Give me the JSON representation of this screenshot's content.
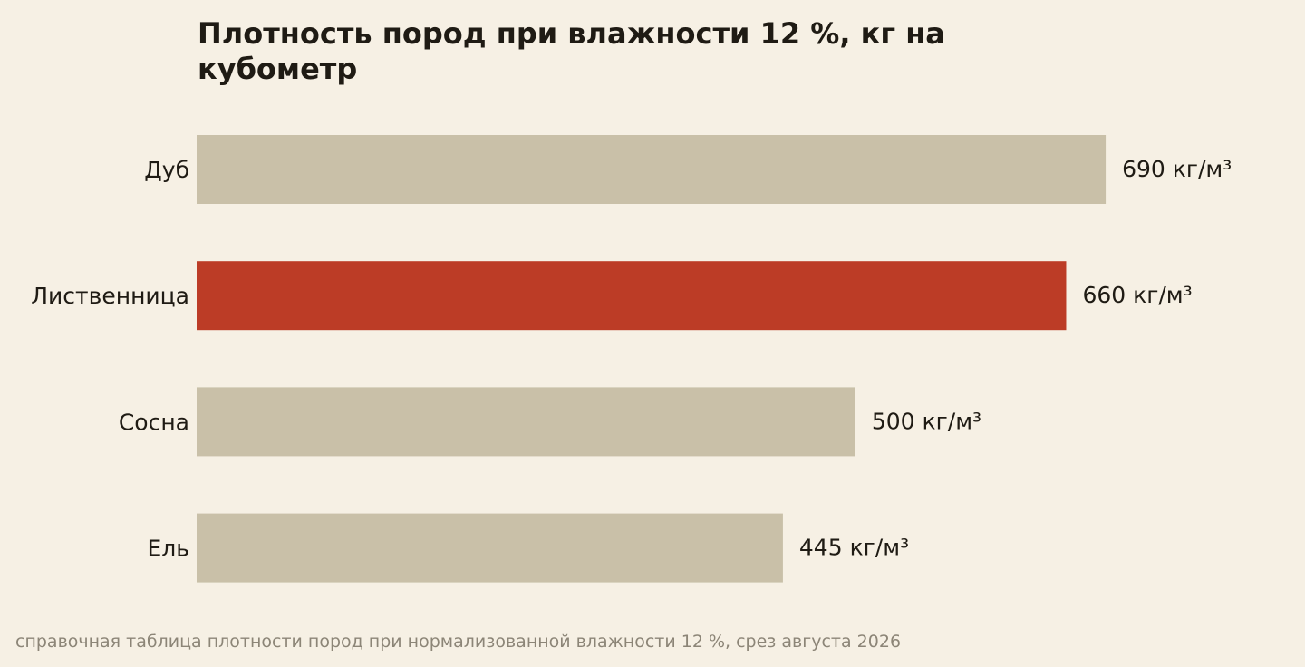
{
  "chart_data": {
    "type": "bar",
    "orientation": "horizontal",
    "title": "Плотность пород при влажности 12 %, кг на кубометр",
    "categories": [
      "Дуб",
      "Лиственница",
      "Сосна",
      "Ель"
    ],
    "values": [
      690,
      660,
      500,
      445
    ],
    "value_labels": [
      "690 кг/м³",
      "660 кг/м³",
      "500 кг/м³",
      "445 кг/м³"
    ],
    "unit": "кг/м³",
    "xlim": [
      0,
      800
    ],
    "grid": false,
    "legend": "none",
    "highlight": "Лиственница",
    "colors": {
      "default": "#c9c0a8",
      "highlight": "#bc3c26"
    }
  },
  "footer": {
    "source": "справочная таблица плотности пород при нормализованной влажности 12 %, срез августа 2026"
  }
}
